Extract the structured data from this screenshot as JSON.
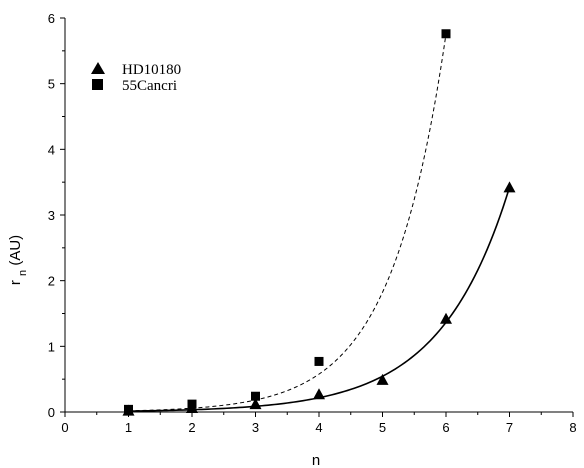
{
  "chart_data": {
    "type": "scatter",
    "title": "",
    "xlabel": "n",
    "ylabel_main": "r",
    "ylabel_sub": "n",
    "ylabel_unit": "(AU)",
    "xlim": [
      0,
      8
    ],
    "ylim": [
      0,
      6
    ],
    "xticks": [
      "0",
      "1",
      "2",
      "3",
      "4",
      "5",
      "6",
      "7",
      "8"
    ],
    "yticks": [
      "0",
      "1",
      "2",
      "3",
      "4",
      "5",
      "6"
    ],
    "grid": false,
    "legend_position": "top-left",
    "series": [
      {
        "name": "HD10180",
        "marker": "triangle",
        "fit_line": "solid",
        "x": [
          1,
          2,
          3,
          4,
          5,
          6,
          7
        ],
        "y": [
          0.02,
          0.06,
          0.12,
          0.27,
          0.49,
          1.42,
          3.42
        ]
      },
      {
        "name": "55Cancri",
        "marker": "square",
        "fit_line": "dashed",
        "x": [
          1,
          2,
          3,
          4,
          6
        ],
        "y": [
          0.04,
          0.12,
          0.24,
          0.77,
          5.76
        ]
      }
    ],
    "fit_curves": [
      {
        "series": "HD10180",
        "a": 0.0055,
        "b": 0.919,
        "x_range": [
          1,
          7
        ]
      },
      {
        "series": "55Cancri",
        "a": 0.0058,
        "b": 1.15,
        "x_range": [
          1,
          6
        ]
      }
    ]
  }
}
